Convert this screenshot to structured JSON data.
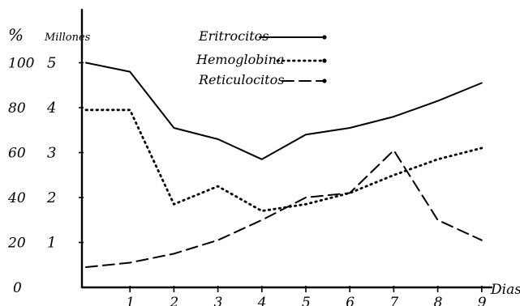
{
  "chart_data": {
    "type": "line",
    "xlabel": "Dias",
    "y_left_label": "%",
    "y_right_label": "Millones",
    "x_ticks": [
      "1",
      "2",
      "3",
      "4",
      "5",
      "6",
      "7",
      "8",
      "9"
    ],
    "y_left_ticks": [
      "100",
      "80",
      "60",
      "40",
      "20",
      "0"
    ],
    "y_right_ticks": [
      "5",
      "4",
      "3",
      "2",
      "1"
    ],
    "xlim": [
      0,
      9
    ],
    "ylim_millones": [
      0,
      5
    ],
    "grid": false,
    "legend_position": "top-center",
    "series": [
      {
        "name": "Eritrocitos",
        "style": "solid",
        "x": [
          0,
          1,
          2,
          3,
          4,
          5,
          6,
          7,
          8,
          9
        ],
        "values": [
          5.0,
          4.8,
          3.55,
          3.3,
          2.85,
          3.4,
          3.55,
          3.8,
          4.15,
          4.55
        ]
      },
      {
        "name": "Hemoglobina",
        "style": "dotted",
        "x": [
          0,
          1,
          2,
          3,
          4,
          5,
          6,
          7,
          8,
          9
        ],
        "values": [
          3.95,
          3.95,
          1.85,
          2.25,
          1.7,
          1.85,
          2.1,
          2.5,
          2.85,
          3.1
        ]
      },
      {
        "name": "Reticulocitos",
        "style": "dashed",
        "x": [
          0,
          1,
          2,
          3,
          4,
          5,
          6,
          7,
          8,
          9
        ],
        "values": [
          0.45,
          0.55,
          0.75,
          1.05,
          1.5,
          2.0,
          2.1,
          3.05,
          1.5,
          1.05
        ]
      }
    ]
  }
}
